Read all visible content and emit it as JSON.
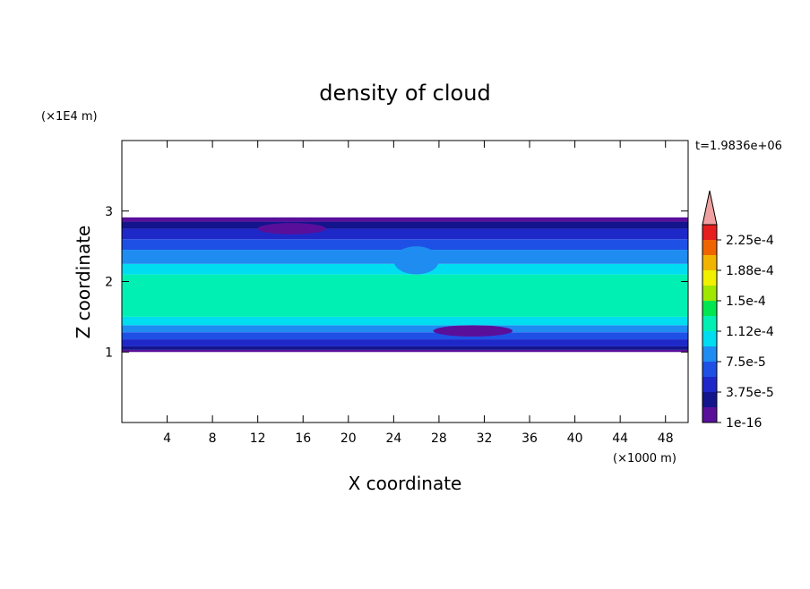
{
  "chart_data": {
    "type": "contour",
    "title": "density of cloud",
    "time_label": "t=1.9836e+06",
    "x_label": "X coordinate",
    "x_unit": "(×1000 m)",
    "y_label": "Z coordinate",
    "y_unit": "(×1E4 m)",
    "xlim": [
      0,
      50
    ],
    "xticks": [
      4,
      8,
      12,
      16,
      20,
      24,
      28,
      32,
      36,
      40,
      44,
      48
    ],
    "ylim": [
      0,
      4
    ],
    "yticks": [
      1,
      2,
      3
    ],
    "colorbar": {
      "clim": [
        0,
        0.00024375
      ],
      "colors": [
        "#5a0f9b",
        "#14148c",
        "#1e28c8",
        "#1e50e6",
        "#1e8cf0",
        "#00dcf0",
        "#00f0b4",
        "#00e650",
        "#a0e600",
        "#f0f000",
        "#f0b400",
        "#f06400",
        "#e61e1e"
      ],
      "over_color": "#f0a0a0",
      "ticks": [
        {
          "value": 1e-16,
          "label": "1e-16"
        },
        {
          "value": 3.75e-05,
          "label": "3.75e-5"
        },
        {
          "value": 7.5e-05,
          "label": "7.5e-5"
        },
        {
          "value": 0.0001125,
          "label": "1.12e-4"
        },
        {
          "value": 0.00015,
          "label": "1.5e-4"
        },
        {
          "value": 0.0001875,
          "label": "1.88e-4"
        },
        {
          "value": 0.000225,
          "label": "2.25e-4"
        }
      ]
    },
    "bands": {
      "z_bottom": [
        1.0,
        1.03,
        1.08,
        1.18,
        1.28,
        1.38,
        1.5,
        2.1,
        2.25,
        2.45,
        2.6,
        2.75,
        2.85
      ],
      "z_top": [
        1.03,
        1.08,
        1.18,
        1.28,
        1.38,
        1.5,
        2.1,
        2.25,
        2.45,
        2.6,
        2.75,
        2.85,
        2.91
      ],
      "values": [
        9e-06,
        2.8e-05,
        4.7e-05,
        6.5e-05,
        8.4e-05,
        0.000103,
        0.000122,
        0.000103,
        8.4e-05,
        6.5e-05,
        4.7e-05,
        2.8e-05,
        9e-06
      ]
    },
    "features": {
      "x": [
        15,
        31,
        26
      ],
      "z": [
        2.75,
        1.3,
        2.3
      ],
      "rx": [
        3,
        3.5,
        2
      ],
      "rz": [
        0.08,
        0.08,
        0.2
      ],
      "values": [
        9e-06,
        9e-06,
        8.4e-05
      ]
    }
  }
}
